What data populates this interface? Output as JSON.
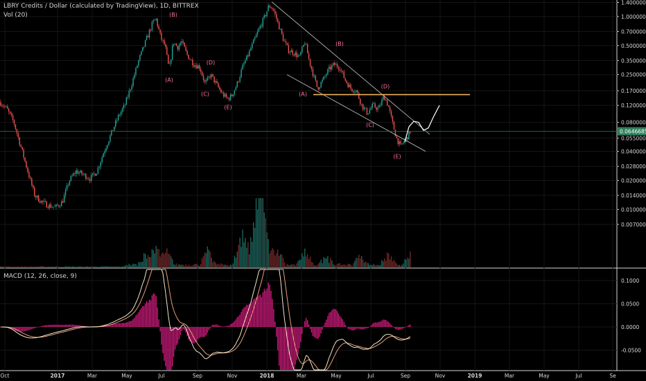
{
  "header": {
    "title": "LBRY Credits / Dollar (calculated by TradingView), 1D, BITTREX",
    "volume_label": "Vol (20)"
  },
  "macd_label": "MACD (12, 26, close, 9)",
  "colors": {
    "background": "#000000",
    "up_candle": "#26a69a",
    "down_candle": "#ef5350",
    "macd_line": "#f5e6c8",
    "signal_line": "#e8a07a",
    "histogram": "#e91e8c",
    "fib_line": "#f0b45a",
    "price_line": "#2e7d5b",
    "wave_label": "#ff6fa0"
  },
  "chart_data": [
    {
      "type": "candlestick",
      "scale": "log",
      "price_axis_ticks": [
        "1.40000000",
        "1.00000000",
        "0.70000000",
        "0.50000000",
        "0.35000000",
        "0.25000000",
        "0.17000000",
        "0.12000000",
        "0.08000000",
        "0.05500000",
        "0.04000000",
        "0.02800000",
        "0.02000000",
        "0.01400000",
        "0.01000000",
        "0.00700000"
      ],
      "x_axis_ticks": [
        "Oct",
        "2017",
        "Mar",
        "May",
        "Jul",
        "Sep",
        "Nov",
        "2018",
        "Mar",
        "May",
        "Jul",
        "Sep",
        "Nov",
        "2019",
        "Mar",
        "May",
        "Jul",
        "Se"
      ],
      "last_price_label": "0.06466857",
      "price_path": [
        [
          0,
          0.13
        ],
        [
          10,
          0.11
        ],
        [
          20,
          0.08
        ],
        [
          30,
          0.045
        ],
        [
          40,
          0.025
        ],
        [
          50,
          0.014
        ],
        [
          60,
          0.012
        ],
        [
          70,
          0.011
        ],
        [
          80,
          0.0105
        ],
        [
          90,
          0.012
        ],
        [
          100,
          0.02
        ],
        [
          110,
          0.025
        ],
        [
          120,
          0.023
        ],
        [
          130,
          0.021
        ],
        [
          140,
          0.025
        ],
        [
          150,
          0.04
        ],
        [
          160,
          0.06
        ],
        [
          170,
          0.09
        ],
        [
          180,
          0.12
        ],
        [
          190,
          0.2
        ],
        [
          200,
          0.35
        ],
        [
          210,
          0.55
        ],
        [
          220,
          0.85
        ],
        [
          225,
          0.95
        ],
        [
          232,
          0.6
        ],
        [
          238,
          0.5
        ],
        [
          244,
          0.28
        ],
        [
          250,
          0.55
        ],
        [
          256,
          0.48
        ],
        [
          262,
          0.55
        ],
        [
          270,
          0.4
        ],
        [
          280,
          0.32
        ],
        [
          288,
          0.3
        ],
        [
          296,
          0.2
        ],
        [
          304,
          0.25
        ],
        [
          312,
          0.2
        ],
        [
          320,
          0.16
        ],
        [
          328,
          0.14
        ],
        [
          334,
          0.15
        ],
        [
          342,
          0.2
        ],
        [
          350,
          0.3
        ],
        [
          358,
          0.4
        ],
        [
          366,
          0.55
        ],
        [
          374,
          0.75
        ],
        [
          382,
          1.0
        ],
        [
          388,
          1.3
        ],
        [
          394,
          1.2
        ],
        [
          400,
          0.9
        ],
        [
          408,
          0.6
        ],
        [
          416,
          0.45
        ],
        [
          424,
          0.42
        ],
        [
          432,
          0.38
        ],
        [
          440,
          0.55
        ],
        [
          446,
          0.35
        ],
        [
          452,
          0.25
        ],
        [
          458,
          0.18
        ],
        [
          466,
          0.22
        ],
        [
          474,
          0.28
        ],
        [
          482,
          0.32
        ],
        [
          490,
          0.3
        ],
        [
          498,
          0.22
        ],
        [
          506,
          0.18
        ],
        [
          514,
          0.17
        ],
        [
          522,
          0.12
        ],
        [
          530,
          0.1
        ],
        [
          538,
          0.12
        ],
        [
          546,
          0.11
        ],
        [
          554,
          0.15
        ],
        [
          560,
          0.12
        ],
        [
          566,
          0.08
        ],
        [
          572,
          0.055
        ],
        [
          578,
          0.045
        ],
        [
          584,
          0.052
        ],
        [
          590,
          0.06
        ],
        [
          592,
          0.065
        ]
      ],
      "volume_peaks": [
        [
          210,
          3
        ],
        [
          225,
          5
        ],
        [
          240,
          4
        ],
        [
          300,
          4
        ],
        [
          348,
          10
        ],
        [
          360,
          6
        ],
        [
          372,
          18
        ],
        [
          378,
          10
        ],
        [
          386,
          6
        ],
        [
          400,
          5
        ],
        [
          440,
          4
        ],
        [
          470,
          3
        ],
        [
          520,
          3
        ],
        [
          560,
          3
        ],
        [
          592,
          3
        ]
      ],
      "wave_labels": [
        {
          "text": "(B)",
          "t": 250,
          "p": 1.0
        },
        {
          "text": "(A)",
          "t": 244,
          "p": 0.21
        },
        {
          "text": "(D)",
          "t": 304,
          "p": 0.32
        },
        {
          "text": "(C)",
          "t": 296,
          "p": 0.15
        },
        {
          "text": "(E)",
          "t": 329,
          "p": 0.11
        },
        {
          "text": "(B)",
          "t": 490,
          "p": 0.5
        },
        {
          "text": "(A)",
          "t": 437,
          "p": 0.15
        },
        {
          "text": "(D)",
          "t": 556,
          "p": 0.18
        },
        {
          "text": "(C)",
          "t": 534,
          "p": 0.072
        },
        {
          "text": "(E)",
          "t": 573,
          "p": 0.034
        }
      ],
      "fib_level": 0.155,
      "channel_upper": [
        [
          392,
          1.42
        ],
        [
          620,
          0.06
        ]
      ],
      "channel_lower": [
        [
          414,
          0.25
        ],
        [
          614,
          0.04
        ]
      ],
      "projection_path": [
        [
          584,
          0.05
        ],
        [
          590,
          0.072
        ],
        [
          597,
          0.082
        ],
        [
          604,
          0.08
        ],
        [
          611,
          0.066
        ],
        [
          618,
          0.07
        ],
        [
          625,
          0.09
        ],
        [
          634,
          0.12
        ]
      ]
    },
    {
      "type": "macd",
      "axis_ticks": [
        "0.1000",
        "0.0500",
        "0.0000",
        "-0.0500"
      ]
    }
  ]
}
